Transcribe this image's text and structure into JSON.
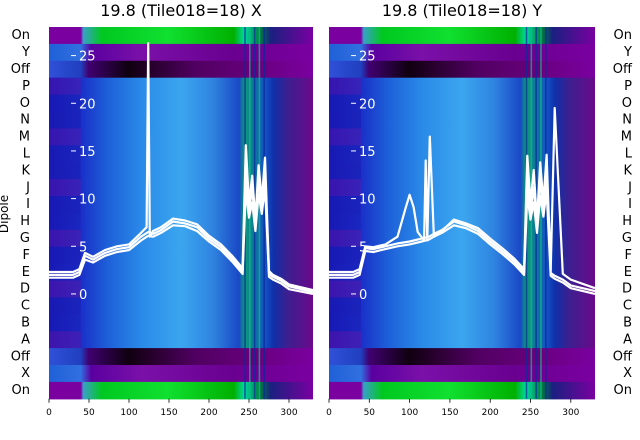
{
  "figure": {
    "dipole_labels": [
      "On",
      "Y",
      "Off",
      "P",
      "O",
      "N",
      "M",
      "L",
      "K",
      "J",
      "I",
      "H",
      "G",
      "F",
      "E",
      "D",
      "C",
      "B",
      "A",
      "Off",
      "X",
      "On"
    ],
    "y_axis_label": "Dipole"
  },
  "chart_data": [
    {
      "type": "heatmap",
      "title": "19.8 (Tile018=18) X",
      "xlim": [
        0,
        330
      ],
      "xticks": [
        0,
        50,
        100,
        150,
        200,
        250,
        300
      ],
      "ylim": [
        -11,
        28
      ],
      "yticks": [
        0,
        5,
        10,
        15,
        20,
        25
      ],
      "grid": false,
      "lines": [
        {
          "x": [
            0,
            30,
            38,
            45,
            55,
            70,
            85,
            100,
            115,
            122,
            124,
            126,
            130,
            140,
            155,
            170,
            185,
            200,
            215,
            230,
            242,
            246,
            250,
            254,
            258,
            262,
            266,
            270,
            275,
            280,
            290,
            300,
            330
          ],
          "y": [
            2.3,
            2.3,
            2.6,
            4.3,
            3.9,
            4.6,
            5.0,
            5.2,
            6.4,
            7.0,
            26.3,
            6.0,
            6.6,
            7.0,
            7.9,
            7.7,
            7.3,
            6.1,
            5.2,
            3.9,
            2.7,
            15.6,
            9.5,
            12.4,
            7.8,
            13.5,
            9.8,
            14.3,
            2.4,
            2.0,
            1.6,
            1.0,
            0.4
          ]
        },
        {
          "x": [
            0,
            30,
            38,
            45,
            55,
            70,
            85,
            100,
            115,
            124,
            130,
            140,
            155,
            170,
            185,
            200,
            215,
            230,
            242,
            246,
            250,
            254,
            258,
            262,
            266,
            270,
            275,
            280,
            290,
            300,
            330
          ],
          "y": [
            2.0,
            2.0,
            2.3,
            4.0,
            3.6,
            4.3,
            4.7,
            4.9,
            6.0,
            6.5,
            6.3,
            6.7,
            7.6,
            7.4,
            7.0,
            5.8,
            4.9,
            3.6,
            2.4,
            13.2,
            8.8,
            11.0,
            7.2,
            12.0,
            9.1,
            12.8,
            2.1,
            1.8,
            1.4,
            0.8,
            0.2
          ]
        },
        {
          "x": [
            0,
            30,
            38,
            45,
            55,
            70,
            85,
            100,
            115,
            124,
            130,
            140,
            155,
            170,
            185,
            200,
            215,
            230,
            242,
            246,
            250,
            254,
            258,
            262,
            266,
            270,
            275,
            280,
            290,
            300,
            330
          ],
          "y": [
            1.7,
            1.7,
            2.0,
            3.6,
            3.3,
            4.0,
            4.4,
            4.6,
            5.6,
            6.1,
            6.0,
            6.4,
            7.2,
            7.1,
            6.6,
            5.5,
            4.6,
            3.3,
            2.1,
            10.9,
            8.0,
            9.6,
            6.6,
            10.5,
            8.4,
            11.2,
            1.8,
            1.5,
            1.1,
            0.5,
            0.0
          ]
        }
      ]
    },
    {
      "type": "heatmap",
      "title": "19.8 (Tile018=18) Y",
      "xlim": [
        0,
        330
      ],
      "xticks": [
        0,
        50,
        100,
        150,
        200,
        250,
        300
      ],
      "ylim": [
        -11,
        28
      ],
      "yticks": [
        0,
        5,
        10,
        15,
        20,
        25
      ],
      "grid": false,
      "lines": [
        {
          "x": [
            0,
            30,
            38,
            45,
            55,
            70,
            85,
            95,
            100,
            105,
            110,
            118,
            120,
            122,
            125,
            130,
            140,
            155,
            170,
            185,
            200,
            215,
            230,
            242,
            246,
            250,
            254,
            258,
            262,
            266,
            270,
            275,
            280,
            290,
            300,
            330
          ],
          "y": [
            2.3,
            2.3,
            2.6,
            5.0,
            4.9,
            5.2,
            6.0,
            9.0,
            10.4,
            9.1,
            6.5,
            5.6,
            14.0,
            5.6,
            16.5,
            6.2,
            6.6,
            7.8,
            7.4,
            6.9,
            5.8,
            4.8,
            3.7,
            2.6,
            14.5,
            9.5,
            13.0,
            7.6,
            13.8,
            9.6,
            14.6,
            2.5,
            19.5,
            2.1,
            1.5,
            0.6
          ]
        },
        {
          "x": [
            0,
            30,
            38,
            45,
            55,
            70,
            85,
            100,
            115,
            124,
            130,
            140,
            155,
            170,
            185,
            200,
            215,
            230,
            242,
            246,
            250,
            254,
            258,
            262,
            266,
            270,
            275,
            280,
            290,
            300,
            330
          ],
          "y": [
            2.0,
            2.0,
            2.3,
            4.8,
            4.7,
            5.0,
            5.3,
            5.5,
            5.8,
            6.0,
            6.3,
            6.7,
            7.6,
            7.2,
            6.6,
            5.5,
            4.5,
            3.4,
            2.3,
            12.4,
            8.6,
            11.2,
            7.0,
            12.0,
            8.8,
            12.6,
            2.2,
            1.9,
            1.5,
            0.9,
            0.3
          ]
        },
        {
          "x": [
            0,
            30,
            38,
            45,
            55,
            70,
            85,
            100,
            115,
            124,
            130,
            140,
            155,
            170,
            185,
            200,
            215,
            230,
            242,
            246,
            250,
            254,
            258,
            262,
            266,
            270,
            275,
            280,
            290,
            300,
            330
          ],
          "y": [
            1.7,
            1.7,
            2.0,
            4.5,
            4.4,
            4.7,
            5.0,
            5.2,
            5.5,
            5.7,
            6.0,
            6.4,
            7.2,
            6.9,
            6.3,
            5.2,
            4.2,
            3.1,
            2.0,
            10.4,
            7.8,
            9.6,
            6.4,
            10.3,
            8.1,
            10.8,
            1.9,
            1.6,
            1.2,
            0.6,
            0.0
          ]
        }
      ]
    }
  ]
}
